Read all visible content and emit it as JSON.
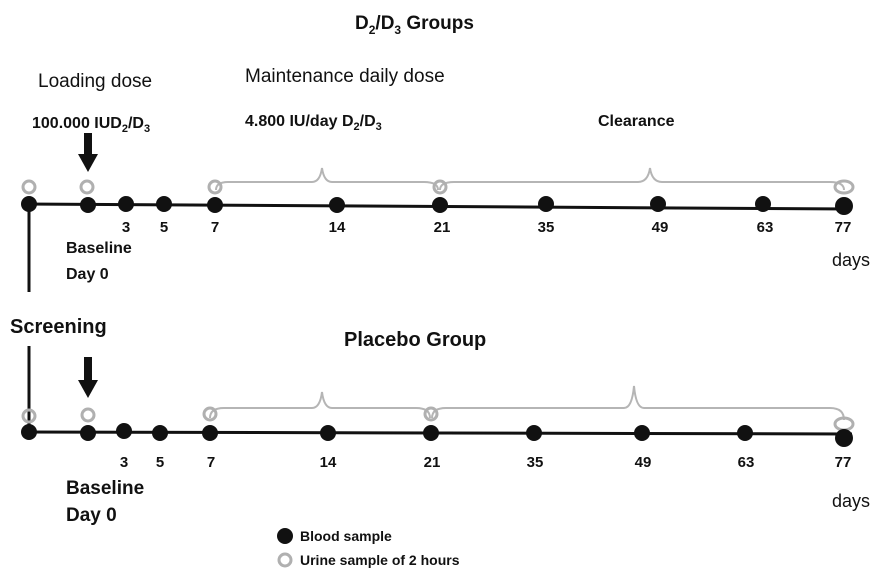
{
  "top_group": {
    "title_pre": "D",
    "title_sub1": "2",
    "title_mid": "/D",
    "title_sub2": "3",
    "title_post": " Groups",
    "loading_dose_label": "Loading dose",
    "loading_dose_value_pre": "100.000 IUD",
    "loading_dose_value_sub1": "2",
    "loading_dose_value_mid": "/D",
    "loading_dose_value_sub2": "3",
    "maintenance_label": "Maintenance daily dose",
    "maintenance_value_pre": "4.800 IU/day D",
    "maintenance_value_sub1": "2",
    "maintenance_value_mid": "/D",
    "maintenance_value_sub2": "3",
    "clearance_label": "Clearance",
    "baseline_label": "Baseline",
    "day0_label": "Day 0",
    "days_label": "days",
    "ticks": [
      "3",
      "5",
      "7",
      "14",
      "21",
      "35",
      "49",
      "63",
      "77"
    ]
  },
  "screening_label": "Screening",
  "bottom_group": {
    "title": "Placebo Group",
    "baseline_label": "Baseline",
    "day0_label": "Day 0",
    "days_label": "days",
    "ticks": [
      "3",
      "5",
      "7",
      "14",
      "21",
      "35",
      "49",
      "63",
      "77"
    ]
  },
  "legend": {
    "blood": "Blood sample",
    "urine": "Urine sample of 2 hours"
  },
  "colors": {
    "line": "#111111",
    "dot": "#111111",
    "urine_ring": "#b0b0b0",
    "brace": "#b5b5b5"
  }
}
